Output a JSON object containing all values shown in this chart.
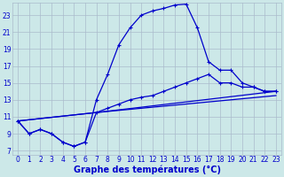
{
  "xlabel": "Graphe des températures (°C)",
  "bg_color": "#cce8e8",
  "grid_color": "#aabbcc",
  "line_color": "#0000cc",
  "xlim": [
    -0.5,
    23.5
  ],
  "ylim": [
    6.5,
    24.5
  ],
  "yticks": [
    7,
    9,
    11,
    13,
    15,
    17,
    19,
    21,
    23
  ],
  "xticks": [
    0,
    1,
    2,
    3,
    4,
    5,
    6,
    7,
    8,
    9,
    10,
    11,
    12,
    13,
    14,
    15,
    16,
    17,
    18,
    19,
    20,
    21,
    22,
    23
  ],
  "line1_x": [
    0,
    1,
    2,
    3,
    4,
    5,
    6,
    7,
    8,
    9,
    10,
    11,
    12,
    13,
    14,
    15,
    16,
    17,
    18,
    19,
    20,
    21,
    22,
    23
  ],
  "line1_y": [
    10.5,
    9.0,
    9.5,
    9.0,
    8.0,
    7.5,
    8.0,
    13.0,
    16.0,
    19.5,
    21.5,
    23.0,
    23.5,
    23.8,
    24.2,
    24.3,
    21.5,
    17.5,
    16.5,
    16.5,
    15.0,
    14.5,
    14.0,
    14.0
  ],
  "line2_x": [
    0,
    1,
    2,
    3,
    4,
    5,
    6,
    7,
    8,
    9,
    10,
    11,
    12,
    13,
    14,
    15,
    16,
    17,
    18,
    19,
    20,
    21,
    22,
    23
  ],
  "line2_y": [
    10.5,
    9.0,
    9.5,
    9.0,
    8.0,
    7.5,
    8.0,
    11.5,
    12.0,
    12.5,
    13.0,
    13.3,
    13.5,
    14.0,
    14.5,
    15.0,
    15.5,
    16.0,
    15.0,
    15.0,
    14.5,
    14.5,
    14.0,
    14.0
  ],
  "line3_x": [
    0,
    7,
    23
  ],
  "line3_y": [
    10.5,
    11.5,
    14.0
  ],
  "line4_x": [
    0,
    7,
    23
  ],
  "line4_y": [
    10.5,
    11.5,
    13.5
  ]
}
